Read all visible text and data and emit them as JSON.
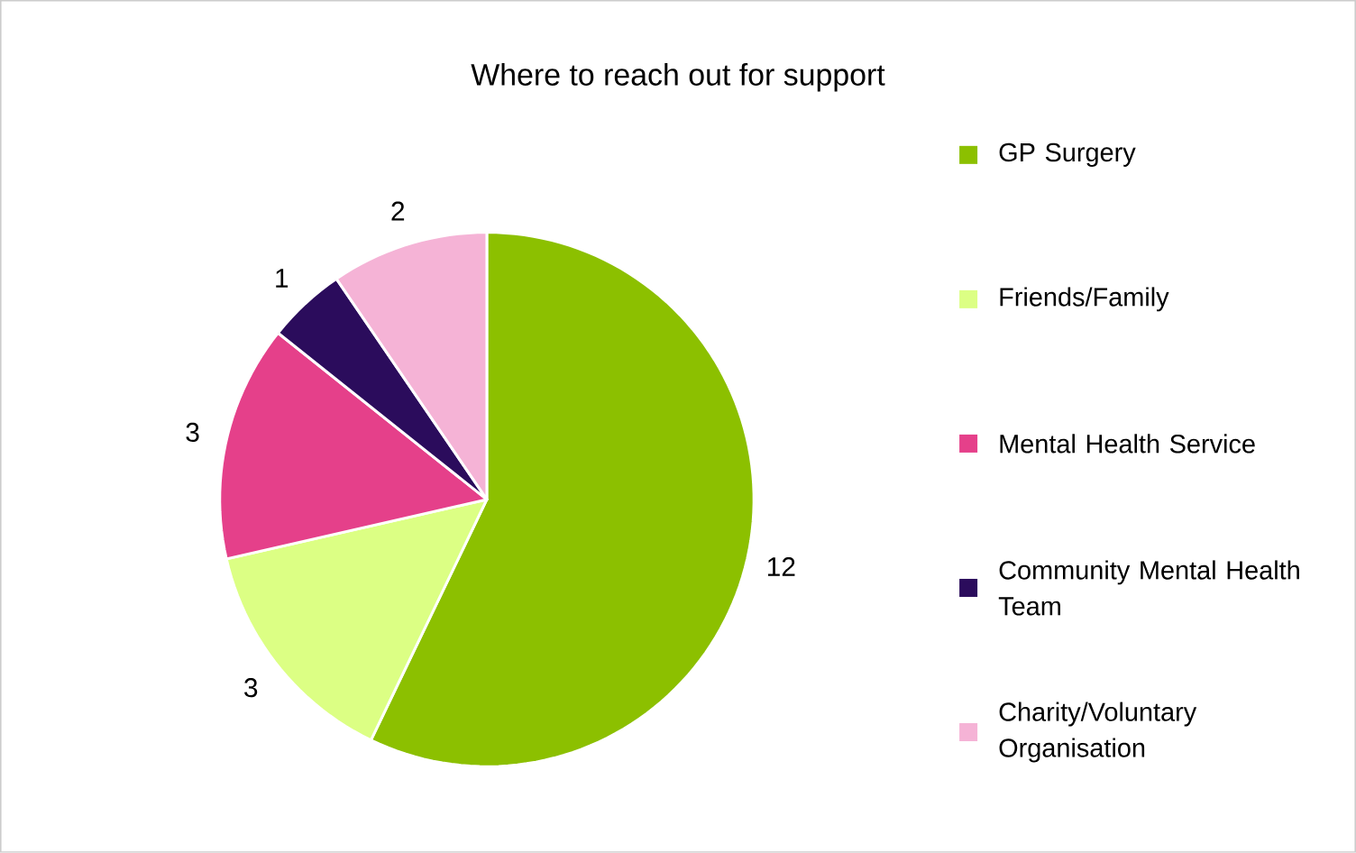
{
  "chart_data": {
    "type": "pie",
    "title": "Where to reach out for support",
    "categories": [
      "GP Surgery",
      "Friends/Family",
      "Mental Health Service",
      "Community Mental Health Team",
      "Charity/Voluntary Organisation"
    ],
    "values": [
      12,
      3,
      3,
      1,
      2
    ],
    "colors": [
      "#8cc000",
      "#dcff84",
      "#e5408a",
      "#2b0c5c",
      "#f5b3d6"
    ],
    "data_labels": true,
    "legend": "right"
  }
}
